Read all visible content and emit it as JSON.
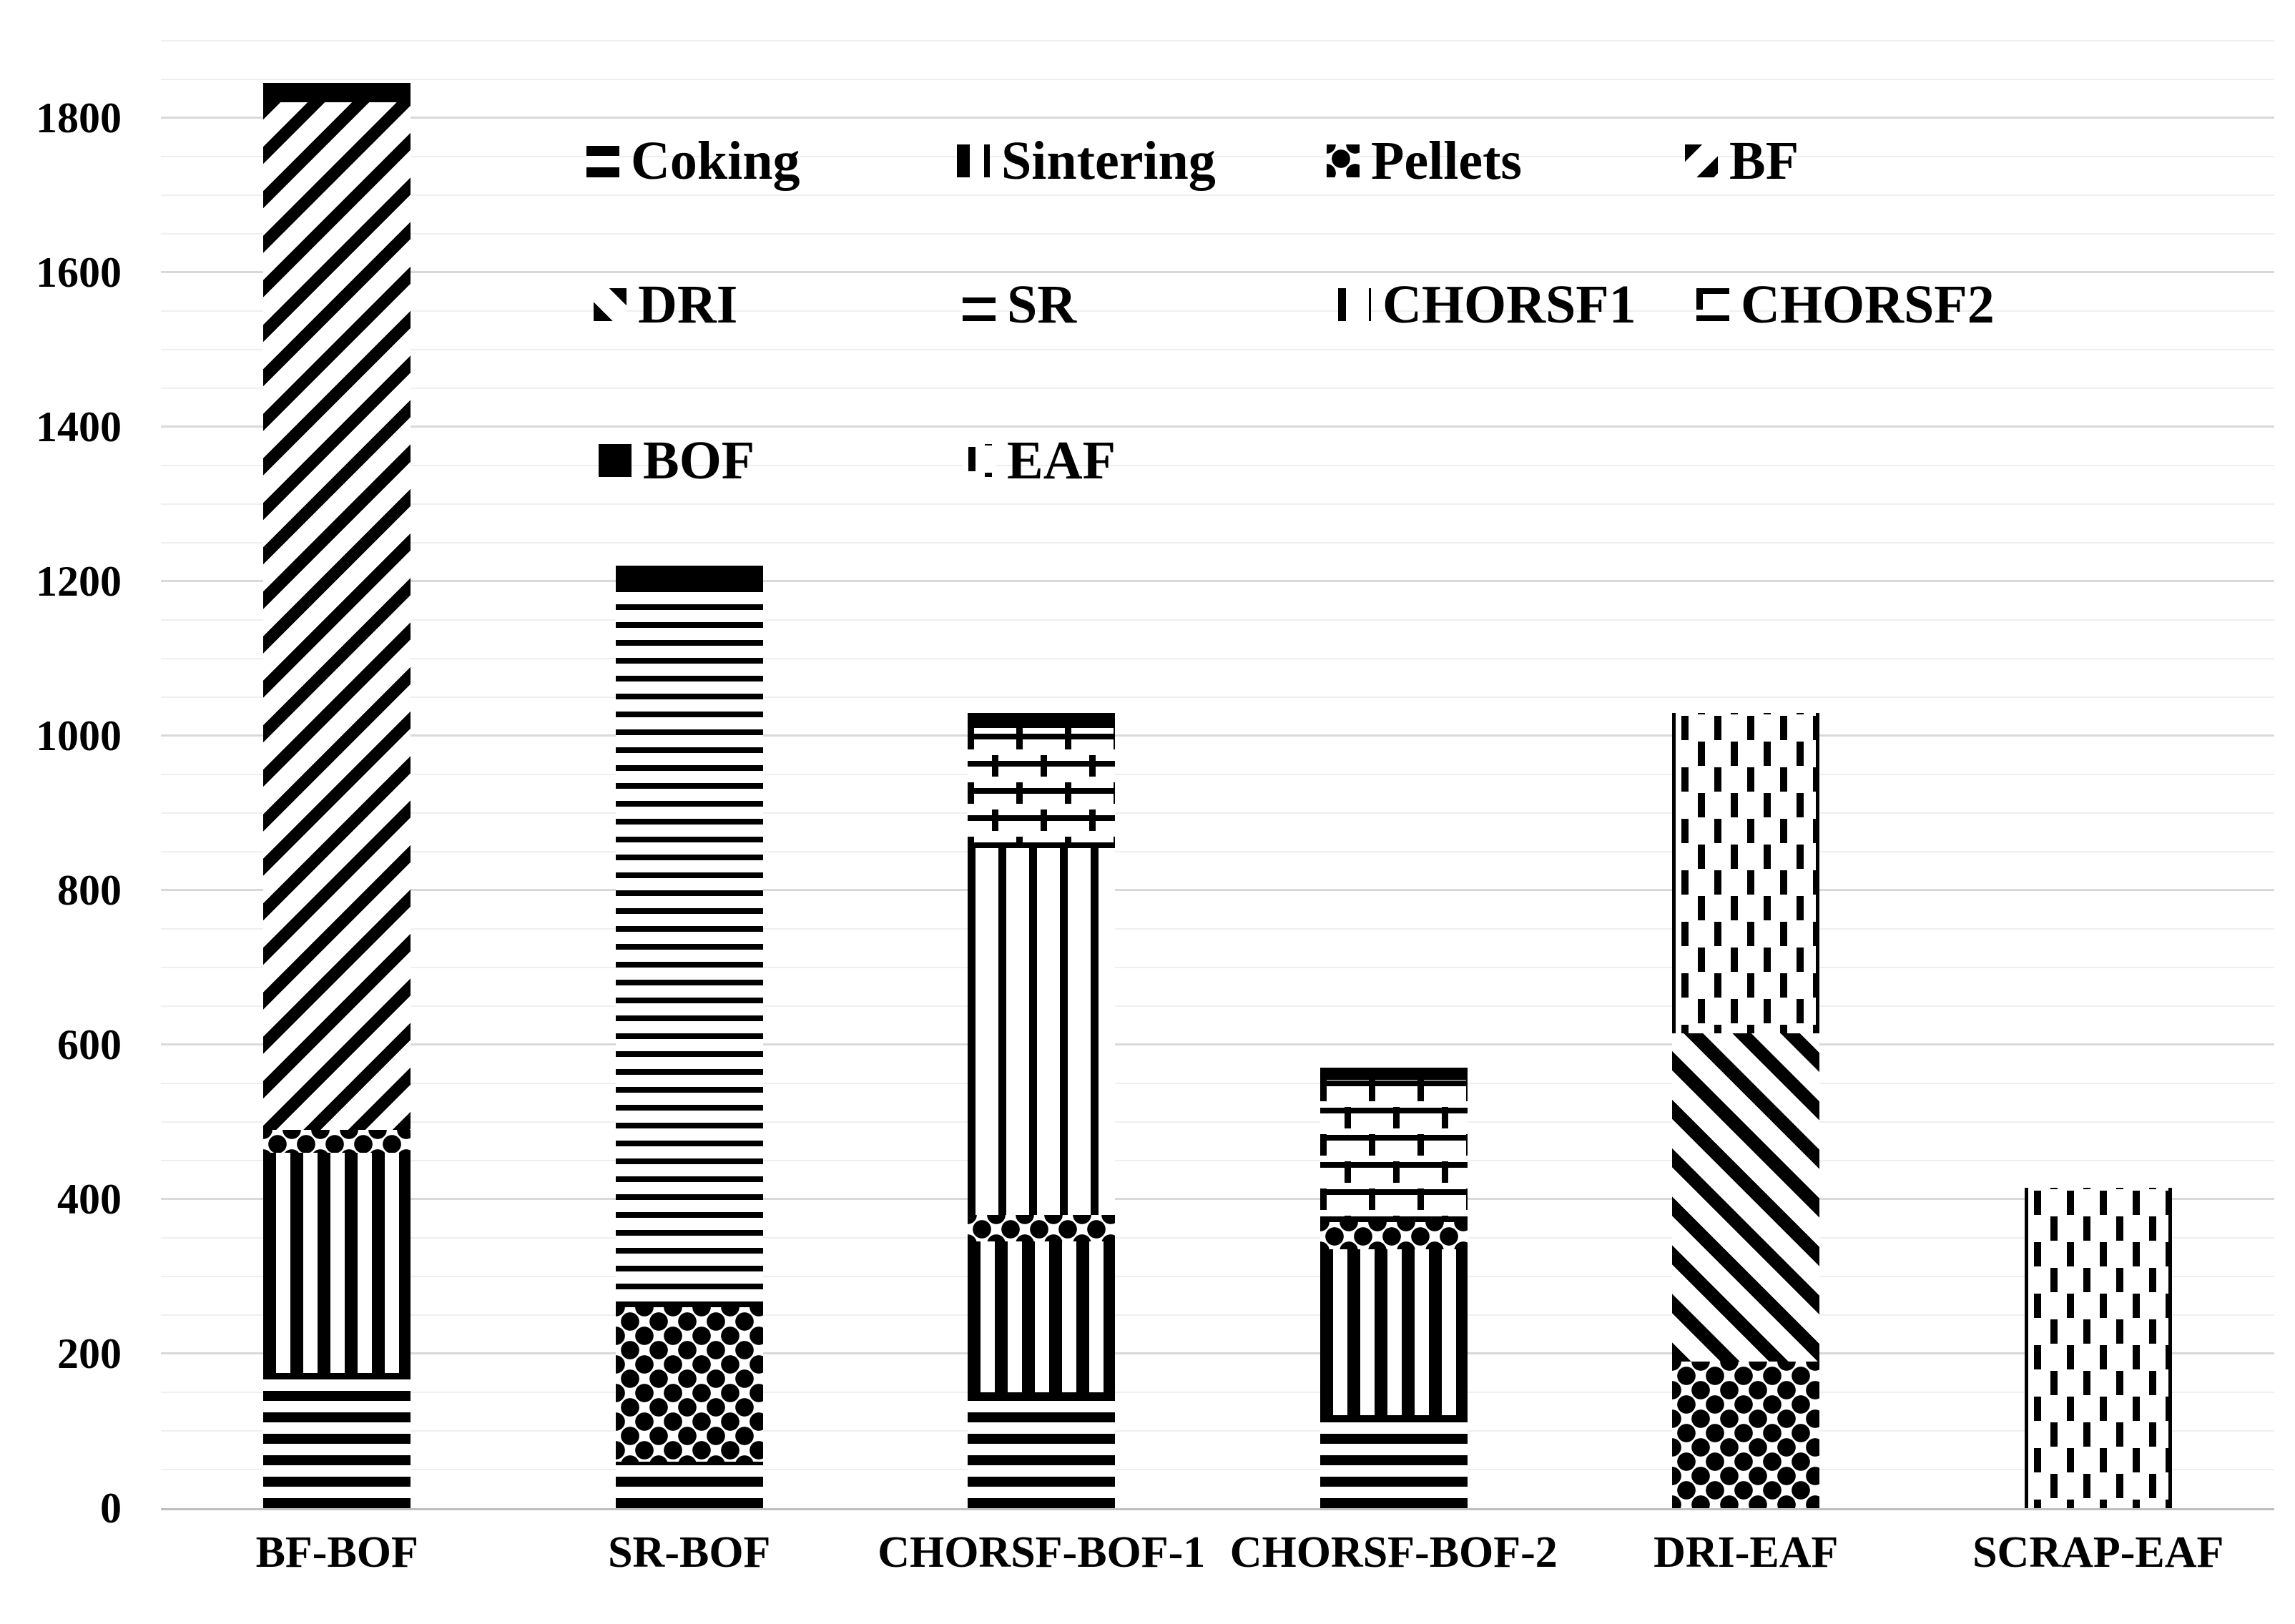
{
  "chart_data": {
    "type": "bar",
    "stacked": true,
    "title": "",
    "categories": [
      "BF-BOF",
      "SR-BOF",
      "CHORSF-BOF-1",
      "CHORSF-BOF-2",
      "DRI-EAF",
      "SCRAP-EAF"
    ],
    "series": [
      {
        "name": "Coking",
        "pattern": "coking",
        "values": [
          175,
          60,
          150,
          120,
          0,
          0
        ]
      },
      {
        "name": "Sintering",
        "pattern": "sintering",
        "values": [
          285,
          0,
          195,
          215,
          0,
          0
        ]
      },
      {
        "name": "Pellets",
        "pattern": "pellets",
        "values": [
          30,
          200,
          35,
          35,
          190,
          0
        ]
      },
      {
        "name": "BF",
        "pattern": "bf",
        "values": [
          1330,
          0,
          0,
          0,
          0,
          0
        ]
      },
      {
        "name": "DRI",
        "pattern": "dri",
        "values": [
          0,
          0,
          0,
          0,
          425,
          0
        ]
      },
      {
        "name": "SR",
        "pattern": "sr",
        "values": [
          0,
          930,
          0,
          0,
          0,
          0
        ]
      },
      {
        "name": "CHORSF1",
        "pattern": "chorsf1",
        "values": [
          0,
          0,
          475,
          0,
          0,
          0
        ]
      },
      {
        "name": "CHORSF2",
        "pattern": "chorsf2",
        "values": [
          0,
          0,
          155,
          185,
          0,
          0
        ]
      },
      {
        "name": "BOF",
        "pattern": "bof",
        "values": [
          25,
          30,
          20,
          15,
          0,
          0
        ]
      },
      {
        "name": "EAF",
        "pattern": "eaf",
        "values": [
          0,
          0,
          0,
          0,
          415,
          415
        ]
      }
    ],
    "stack_totals": [
      1845,
      1220,
      1030,
      570,
      1030,
      415
    ],
    "y_axis": {
      "min": 0,
      "max": 1900,
      "minor_step": 50,
      "major_step": 200,
      "tick_labels": [
        "0",
        "200",
        "400",
        "600",
        "800",
        "1000",
        "1200",
        "1400",
        "1600",
        "1800"
      ]
    },
    "x_axis": {
      "tick_labels": [
        "BF-BOF",
        "SR-BOF",
        "CHORSF-BOF-1",
        "CHORSF-BOF-2",
        "DRI-EAF",
        "SCRAP-EAF"
      ]
    },
    "legend": {
      "position": "inside-top",
      "rows": [
        [
          {
            "label": "Coking",
            "pattern": "coking"
          },
          {
            "label": "Sintering",
            "pattern": "sintering"
          },
          {
            "label": "Pellets",
            "pattern": "pellets"
          },
          {
            "label": "BF",
            "pattern": "bf"
          }
        ],
        [
          {
            "label": "DRI",
            "pattern": "dri"
          },
          {
            "label": "SR",
            "pattern": "sr"
          },
          {
            "label": "CHORSF1",
            "pattern": "chorsf1"
          },
          {
            "label": "CHORSF2",
            "pattern": "chorsf2"
          }
        ],
        [
          {
            "label": "BOF",
            "pattern": "bof"
          },
          {
            "label": "EAF",
            "pattern": "eaf"
          }
        ]
      ]
    },
    "grid": true
  },
  "colors": {
    "ink": "#000000",
    "background": "#ffffff",
    "grid_minor": "#efefef",
    "grid_major": "#d9d9d9",
    "axis_line": "#bfbfbf"
  }
}
